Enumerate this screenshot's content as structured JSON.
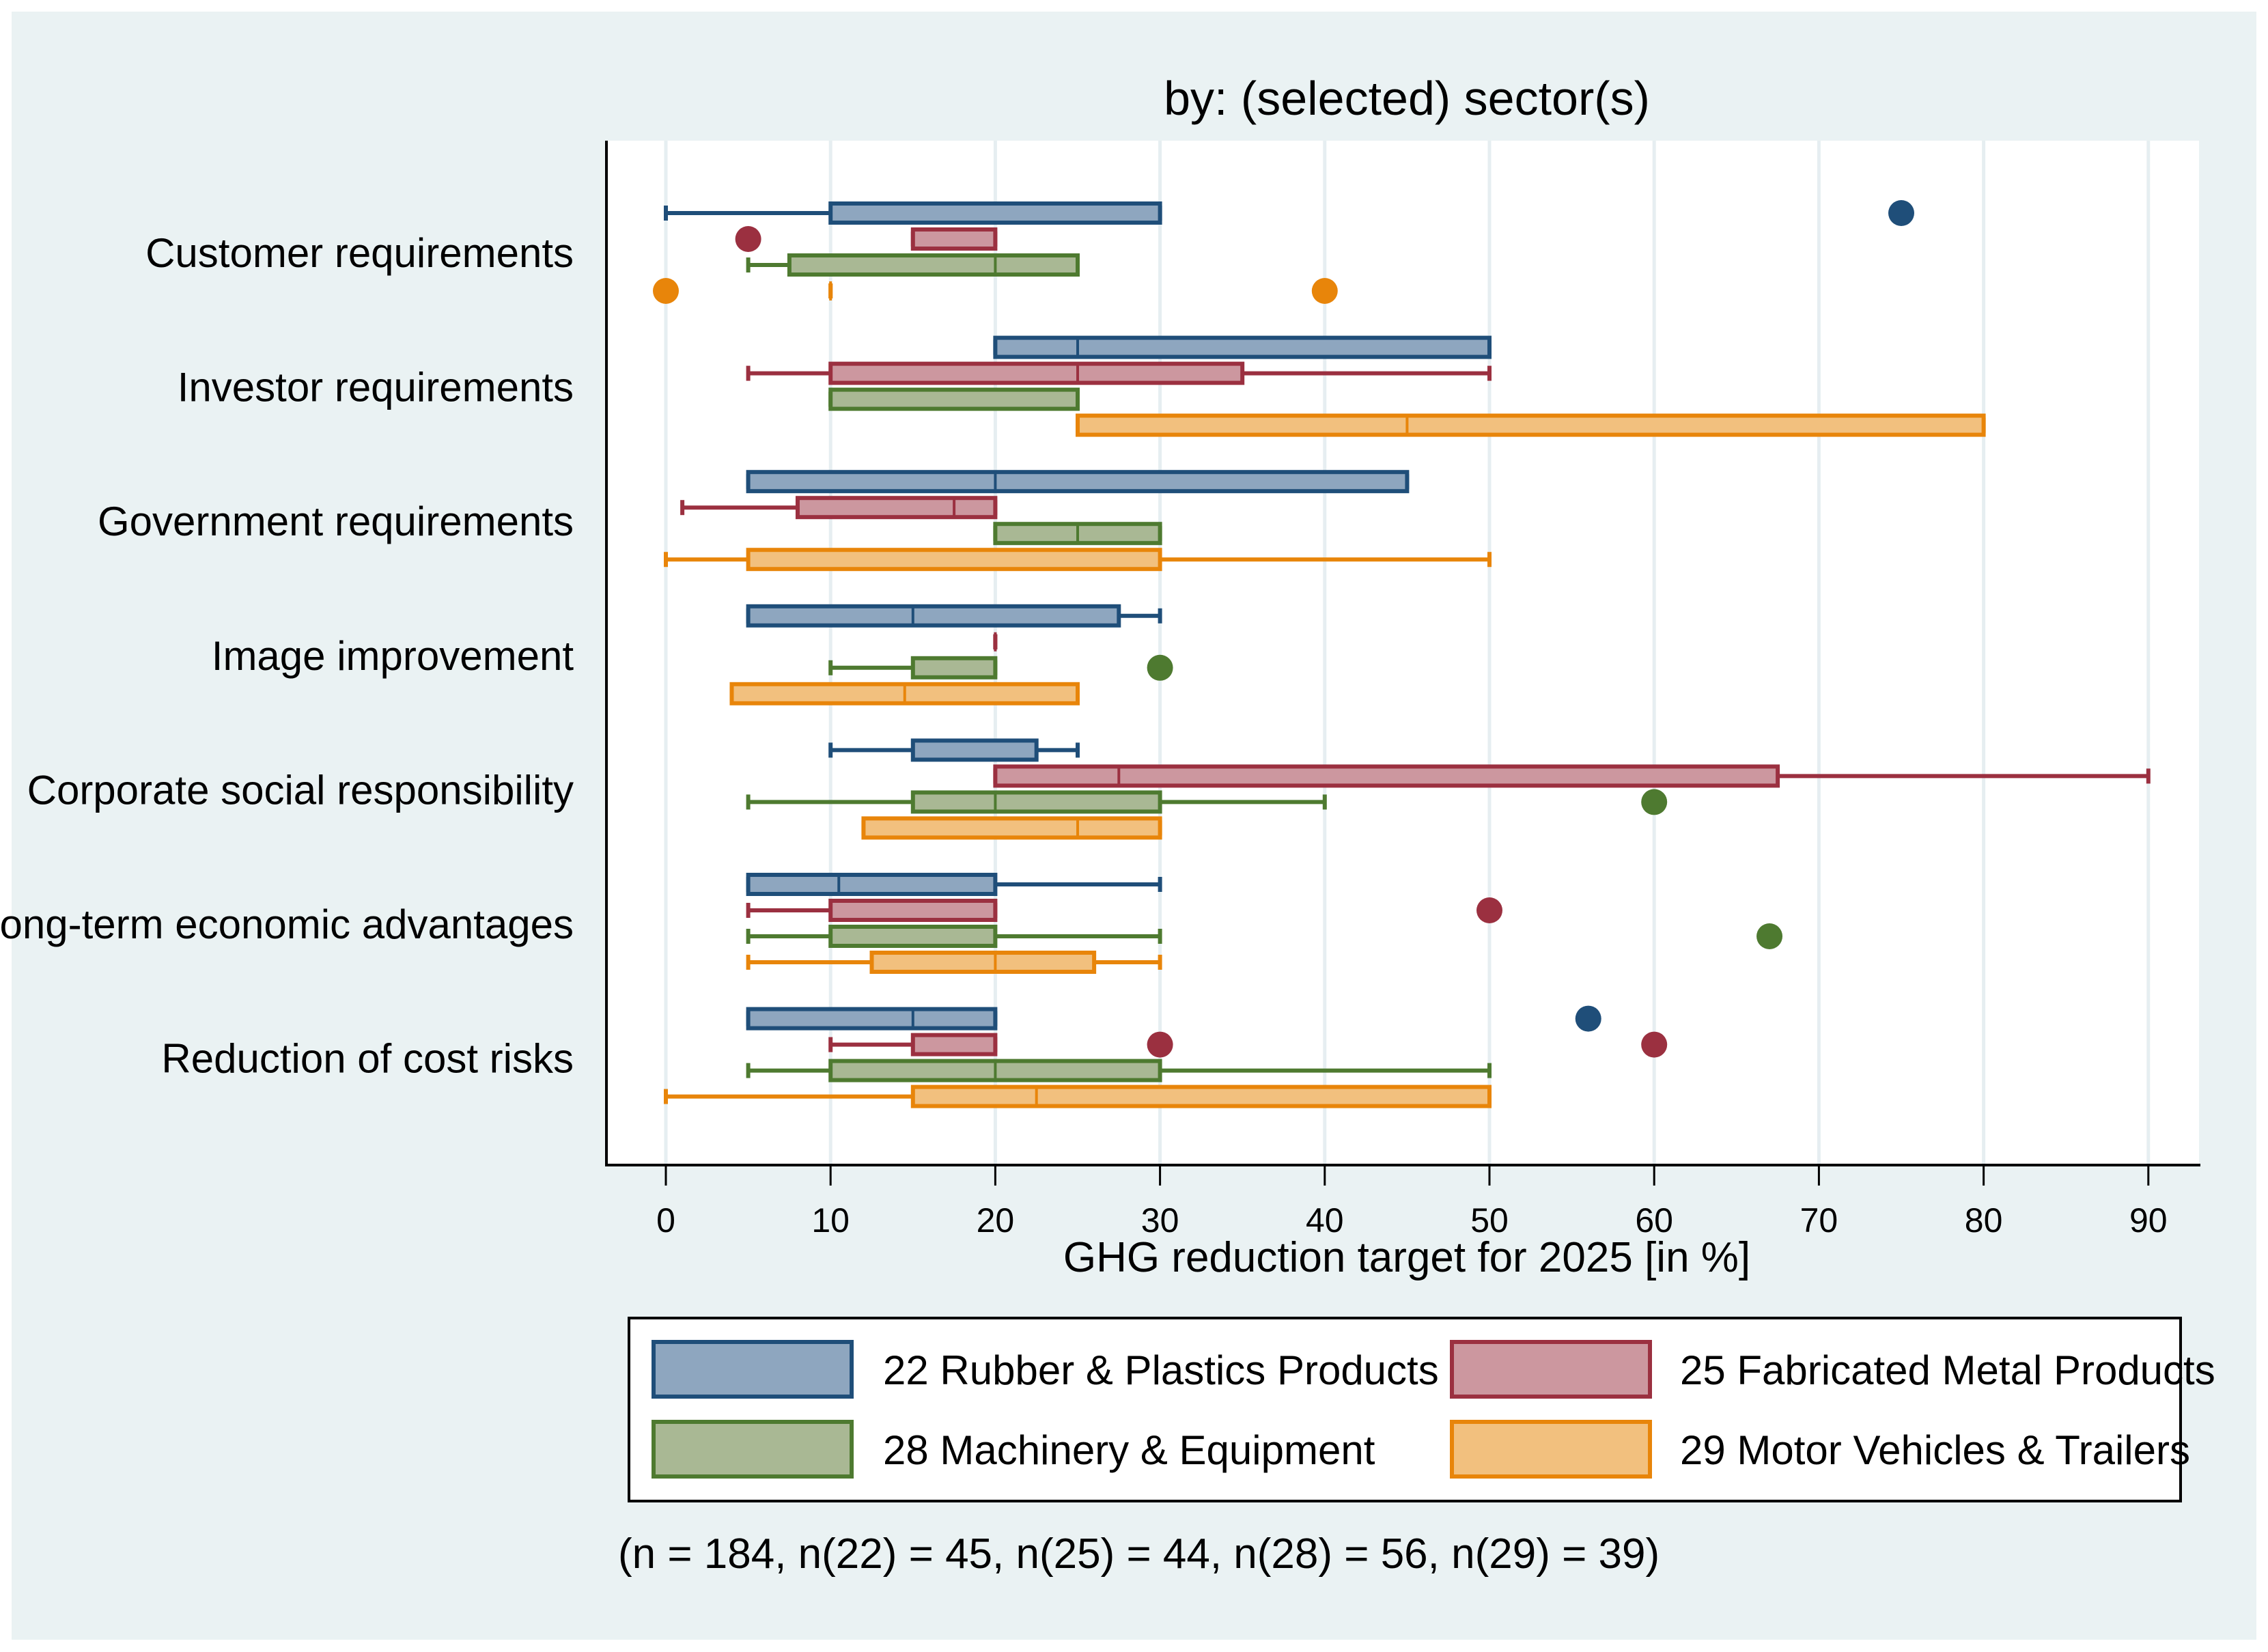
{
  "chart_data": {
    "type": "boxplot",
    "orientation": "horizontal",
    "title": "by: (selected) sector(s)",
    "xlabel": "GHG reduction target for 2025 [in %]",
    "xlim": [
      -3.5,
      93.5
    ],
    "xticks": [
      0,
      10,
      20,
      30,
      40,
      50,
      60,
      70,
      80,
      90
    ],
    "grid": "vertical",
    "legend_position": "bottom",
    "note": "(n = 184, n(22) = 45, n(25) = 44, n(28) = 56, n(29) = 39)",
    "series": [
      {
        "id": "s22",
        "name": "22 Rubber & Plastics Products",
        "fill": "#8EA6BF",
        "stroke": "#1F4E79"
      },
      {
        "id": "s25",
        "name": "25 Fabricated Metal Products",
        "fill": "#CC979F",
        "stroke": "#9B3040"
      },
      {
        "id": "s28",
        "name": "28 Machinery & Equipment",
        "fill": "#A9B894",
        "stroke": "#4E7A30"
      },
      {
        "id": "s29",
        "name": "29 Motor Vehicles & Trailers",
        "fill": "#F2C07E",
        "stroke": "#E8850A"
      }
    ],
    "categories": [
      {
        "label": "Customer requirements",
        "boxes": [
          {
            "whisker_low": 0,
            "q1": 10,
            "median": 10,
            "q3": 30,
            "whisker_high": 30,
            "outliers": [
              75
            ]
          },
          {
            "whisker_low": 15,
            "q1": 15,
            "median": 15,
            "q3": 20,
            "whisker_high": 20,
            "outliers": [
              5
            ]
          },
          {
            "whisker_low": 5,
            "q1": 7.5,
            "median": 20,
            "q3": 25,
            "whisker_high": 25,
            "outliers": []
          },
          {
            "whisker_low": 10,
            "q1": 10,
            "median": 10,
            "q3": 10,
            "whisker_high": 10,
            "outliers": [
              0,
              40
            ]
          }
        ]
      },
      {
        "label": "Investor requirements",
        "boxes": [
          {
            "whisker_low": 20,
            "q1": 20,
            "median": 25,
            "q3": 50,
            "whisker_high": 50,
            "outliers": []
          },
          {
            "whisker_low": 5,
            "q1": 10,
            "median": 25,
            "q3": 35,
            "whisker_high": 50,
            "outliers": []
          },
          {
            "whisker_low": 10,
            "q1": 10,
            "median": 10,
            "q3": 25,
            "whisker_high": 25,
            "outliers": []
          },
          {
            "whisker_low": 25,
            "q1": 25,
            "median": 45,
            "q3": 80,
            "whisker_high": 80,
            "outliers": []
          }
        ]
      },
      {
        "label": "Government requirements",
        "boxes": [
          {
            "whisker_low": 5,
            "q1": 5,
            "median": 20,
            "q3": 45,
            "whisker_high": 45,
            "outliers": []
          },
          {
            "whisker_low": 1,
            "q1": 8,
            "median": 17.5,
            "q3": 20,
            "whisker_high": 20,
            "outliers": []
          },
          {
            "whisker_low": 20,
            "q1": 20,
            "median": 25,
            "q3": 30,
            "whisker_high": 30,
            "outliers": []
          },
          {
            "whisker_low": 0,
            "q1": 5,
            "median": 30,
            "q3": 30,
            "whisker_high": 50,
            "outliers": []
          }
        ]
      },
      {
        "label": "Image improvement",
        "boxes": [
          {
            "whisker_low": 5,
            "q1": 5,
            "median": 15,
            "q3": 27.5,
            "whisker_high": 30,
            "outliers": []
          },
          {
            "whisker_low": 20,
            "q1": 20,
            "median": 20,
            "q3": 20,
            "whisker_high": 20,
            "outliers": []
          },
          {
            "whisker_low": 10,
            "q1": 15,
            "median": 15,
            "q3": 20,
            "whisker_high": 20,
            "outliers": [
              30
            ]
          },
          {
            "whisker_low": 4,
            "q1": 4,
            "median": 14.5,
            "q3": 25,
            "whisker_high": 25,
            "outliers": []
          }
        ]
      },
      {
        "label": "Corporate social responsibility",
        "boxes": [
          {
            "whisker_low": 10,
            "q1": 15,
            "median": 15,
            "q3": 22.5,
            "whisker_high": 25,
            "outliers": []
          },
          {
            "whisker_low": 20,
            "q1": 20,
            "median": 27.5,
            "q3": 67.5,
            "whisker_high": 90,
            "outliers": []
          },
          {
            "whisker_low": 5,
            "q1": 15,
            "median": 20,
            "q3": 30,
            "whisker_high": 40,
            "outliers": [
              60
            ]
          },
          {
            "whisker_low": 12,
            "q1": 12,
            "median": 25,
            "q3": 30,
            "whisker_high": 30,
            "outliers": []
          }
        ]
      },
      {
        "label": "Long-term economic advantages",
        "boxes": [
          {
            "whisker_low": 5,
            "q1": 5,
            "median": 10.5,
            "q3": 20,
            "whisker_high": 30,
            "outliers": []
          },
          {
            "whisker_low": 5,
            "q1": 10,
            "median": 10,
            "q3": 20,
            "whisker_high": 20,
            "outliers": [
              50
            ]
          },
          {
            "whisker_low": 5,
            "q1": 10,
            "median": 20,
            "q3": 20,
            "whisker_high": 30,
            "outliers": [
              67
            ]
          },
          {
            "whisker_low": 5,
            "q1": 12.5,
            "median": 20,
            "q3": 26,
            "whisker_high": 30,
            "outliers": []
          }
        ]
      },
      {
        "label": "Reduction of cost risks",
        "boxes": [
          {
            "whisker_low": 5,
            "q1": 5,
            "median": 15,
            "q3": 20,
            "whisker_high": 20,
            "outliers": [
              56
            ]
          },
          {
            "whisker_low": 10,
            "q1": 15,
            "median": 20,
            "q3": 20,
            "whisker_high": 20,
            "outliers": [
              30,
              60
            ]
          },
          {
            "whisker_low": 5,
            "q1": 10,
            "median": 20,
            "q3": 30,
            "whisker_high": 50,
            "outliers": []
          },
          {
            "whisker_low": 0,
            "q1": 15,
            "median": 22.5,
            "q3": 50,
            "whisker_high": 50,
            "outliers": []
          }
        ]
      }
    ]
  }
}
